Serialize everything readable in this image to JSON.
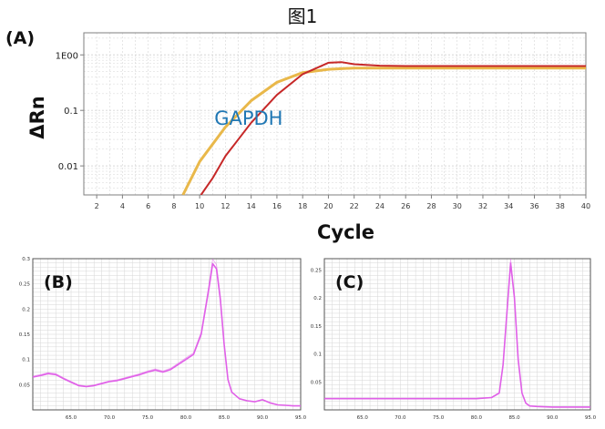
{
  "figure": {
    "title": "图1"
  },
  "colors": {
    "gapdh_red": "#c62828",
    "gapdh_yellow": "#e9b84a",
    "melt_magenta": "#e060e8",
    "grid": "#d6d6d6",
    "frame": "#7f7f7f",
    "annotation": "#1f77b4"
  },
  "chart_data": [
    {
      "panel": "(A)",
      "type": "line",
      "title": "",
      "xlabel": "Cycle",
      "ylabel": "ΔRn",
      "xlim": [
        1,
        40
      ],
      "ylim": [
        0.003,
        2.5
      ],
      "yscale": "log",
      "grid": true,
      "xticks": [
        2,
        4,
        6,
        8,
        10,
        12,
        14,
        16,
        18,
        20,
        22,
        24,
        26,
        28,
        30,
        32,
        34,
        36,
        38,
        40
      ],
      "yticks": [
        {
          "value": 1,
          "label": "1E00"
        },
        {
          "value": 0.1,
          "label": "0.1"
        },
        {
          "value": 0.01,
          "label": "0.01"
        }
      ],
      "annotations": [
        {
          "text": "GAPDH",
          "x": 13.8,
          "y": 0.1
        }
      ],
      "series": [
        {
          "color": "#e9b84a",
          "x": [
            8.7,
            10,
            12,
            14,
            16,
            18,
            20,
            22,
            24,
            26,
            28,
            30,
            32,
            34,
            36,
            38,
            40
          ],
          "y": [
            0.003,
            0.012,
            0.05,
            0.15,
            0.32,
            0.48,
            0.55,
            0.58,
            0.58,
            0.58,
            0.58,
            0.58,
            0.58,
            0.58,
            0.58,
            0.58,
            0.58
          ]
        },
        {
          "color": "#c62828",
          "x": [
            10.1,
            11,
            12,
            14,
            16,
            18,
            20,
            21,
            22,
            24,
            26,
            28,
            30,
            32,
            34,
            36,
            38,
            40
          ],
          "y": [
            0.003,
            0.006,
            0.015,
            0.06,
            0.19,
            0.45,
            0.72,
            0.74,
            0.68,
            0.64,
            0.63,
            0.63,
            0.63,
            0.63,
            0.63,
            0.63,
            0.63,
            0.63
          ]
        }
      ]
    },
    {
      "panel": "(B)",
      "type": "line",
      "title": "",
      "xlim": [
        60,
        95
      ],
      "ylim": [
        0,
        0.3
      ],
      "grid": true,
      "xticks": [
        65,
        70,
        75,
        80,
        85,
        90,
        95
      ],
      "xtick_labels": [
        "65.0",
        "70.0",
        "75.0",
        "80.0",
        "85.0",
        "90.0",
        "95.0"
      ],
      "yticks": [
        0.05,
        0.1,
        0.15,
        0.2,
        0.25,
        0.3
      ],
      "ytick_labels": [
        "0.05",
        "0.1",
        "0.15",
        "0.2",
        "0.25",
        "0.3"
      ],
      "series": [
        {
          "color": "#e060e8",
          "x": [
            60,
            61,
            62,
            63,
            64,
            65,
            66,
            67,
            68,
            69,
            70,
            71,
            72,
            73,
            74,
            75,
            76,
            77,
            78,
            79,
            80,
            81,
            82,
            83,
            83.5,
            84,
            84.5,
            85,
            85.5,
            86,
            87,
            88,
            89,
            90,
            91,
            92,
            93,
            94,
            95
          ],
          "y": [
            0.065,
            0.068,
            0.072,
            0.07,
            0.062,
            0.055,
            0.048,
            0.046,
            0.048,
            0.052,
            0.056,
            0.058,
            0.062,
            0.066,
            0.07,
            0.075,
            0.079,
            0.075,
            0.08,
            0.09,
            0.1,
            0.11,
            0.15,
            0.24,
            0.29,
            0.28,
            0.22,
            0.13,
            0.06,
            0.035,
            0.022,
            0.018,
            0.016,
            0.02,
            0.014,
            0.01,
            0.009,
            0.008,
            0.008
          ]
        }
      ]
    },
    {
      "panel": "(C)",
      "type": "line",
      "title": "",
      "xlim": [
        60,
        95
      ],
      "ylim": [
        0,
        0.27
      ],
      "grid": true,
      "xticks": [
        65,
        70,
        75,
        80,
        85,
        90,
        95
      ],
      "xtick_labels": [
        "65.0",
        "70.0",
        "75.0",
        "80.0",
        "85.0",
        "90.0",
        "95.0"
      ],
      "yticks": [
        0.05,
        0.1,
        0.15,
        0.2,
        0.25
      ],
      "ytick_labels": [
        "0.05",
        "0.1",
        "0.15",
        "0.2",
        "0.25"
      ],
      "series": [
        {
          "color": "#e060e8",
          "x": [
            60,
            65,
            70,
            75,
            80,
            82,
            83,
            83.5,
            84,
            84.5,
            85,
            85.5,
            86,
            86.5,
            87,
            88,
            90,
            92,
            95
          ],
          "y": [
            0.02,
            0.02,
            0.02,
            0.02,
            0.02,
            0.022,
            0.03,
            0.08,
            0.17,
            0.262,
            0.2,
            0.09,
            0.03,
            0.012,
            0.007,
            0.006,
            0.005,
            0.005,
            0.005
          ]
        }
      ]
    }
  ]
}
